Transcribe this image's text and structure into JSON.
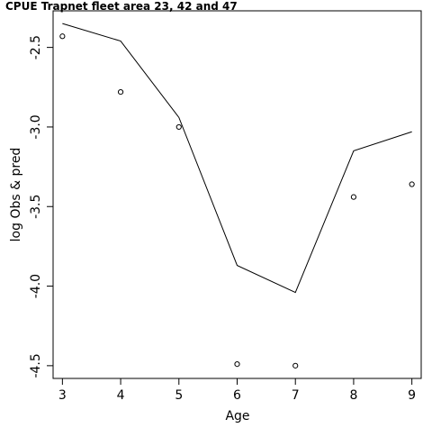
{
  "chart_data": {
    "type": "line",
    "title": "CPUE Trapnet fleet area 23, 42 and 47",
    "xlabel": "Age",
    "ylabel": "log Obs & pred",
    "xlim": [
      2.84,
      9.16
    ],
    "ylim": [
      -4.58,
      -2.27
    ],
    "x_ticks": [
      3,
      4,
      5,
      6,
      7,
      8,
      9
    ],
    "x_tick_labels": [
      "3",
      "4",
      "5",
      "6",
      "7",
      "8",
      "9"
    ],
    "y_ticks": [
      -4.5,
      -4.0,
      -3.5,
      -3.0,
      -2.5
    ],
    "y_tick_labels": [
      "-4.5",
      "-4.0",
      "-3.5",
      "-3.0",
      "-2.5"
    ],
    "grid": false,
    "legend": "none",
    "series": [
      {
        "kind": "line",
        "style": "solid",
        "color": "#000000",
        "x": [
          3,
          4,
          5,
          6,
          7,
          8,
          9
        ],
        "y": [
          -2.35,
          -2.46,
          -2.94,
          -3.87,
          -4.04,
          -3.15,
          -3.03
        ]
      },
      {
        "kind": "points",
        "marker": "open-circle",
        "color": "#000000",
        "x": [
          3,
          4,
          5,
          6,
          7,
          8,
          9
        ],
        "y": [
          -2.43,
          -2.78,
          -3.0,
          -4.49,
          -4.5,
          -3.44,
          -3.36
        ]
      }
    ]
  }
}
